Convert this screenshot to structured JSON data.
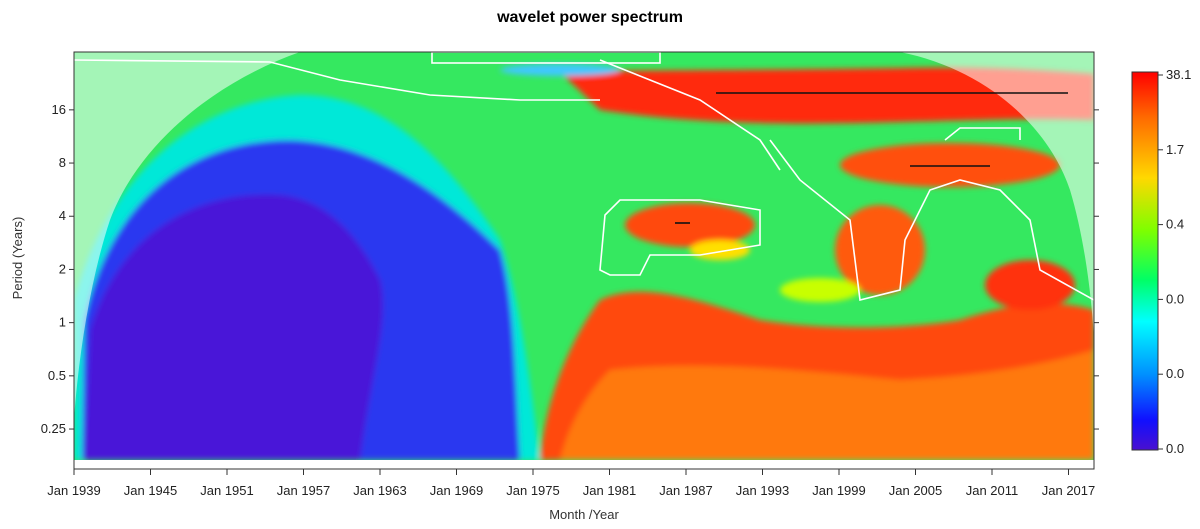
{
  "chart_data": {
    "type": "heatmap",
    "title": "wavelet power spectrum",
    "xlabel": "Month /Year",
    "ylabel": "Period (Years)",
    "x_ticks": [
      "Jan 1939",
      "Jan 1945",
      "Jan 1951",
      "Jan 1957",
      "Jan 1963",
      "Jan 1969",
      "Jan 1975",
      "Jan 1981",
      "Jan 1987",
      "Jan 1993",
      "Jan 1999",
      "Jan 2005",
      "Jan 2011",
      "Jan 2017"
    ],
    "x_range": [
      "Jan 1939",
      "Jan 2019"
    ],
    "y_ticks": [
      {
        "value": 0.25,
        "label": "0.25"
      },
      {
        "value": 0.5,
        "label": "0.5"
      },
      {
        "value": 1,
        "label": "1"
      },
      {
        "value": 2,
        "label": "2"
      },
      {
        "value": 4,
        "label": "4"
      },
      {
        "value": 8,
        "label": "8"
      },
      {
        "value": 16,
        "label": "16"
      }
    ],
    "y_range": [
      0.167,
      34
    ],
    "y_scale": "log2",
    "colorbar": {
      "labels": [
        "38.1",
        "1.7",
        "0.4",
        "0.0",
        "0.0",
        "0.0"
      ],
      "colors": [
        "#ff0000",
        "#ff8000",
        "#ffff00",
        "#80ff00",
        "#00ff40",
        "#00ffff",
        "#0080ff",
        "#0000ff",
        "#4000e0"
      ]
    },
    "overview": "Low power (blue) dominates 1939–1975 at all periods; high power (red) at 0.25–2 yr after ~1980, 2–4 yr bands near 1984–1992 and 1999–2016, and a strong 16-yr band from ~1988 to 2017."
  }
}
